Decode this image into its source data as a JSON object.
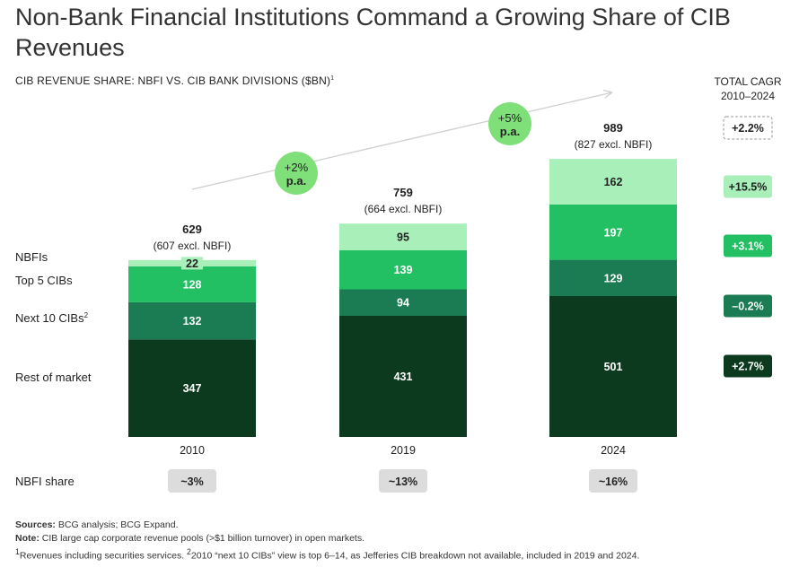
{
  "title": "Non-Bank Financial Institutions Command a Growing Share of CIB Revenues",
  "subtitle": "CIB REVENUE SHARE: NBFI VS. CIB BANK DIVISIONS ($BN)",
  "subtitle_sup": "1",
  "cagr_header": {
    "line1": "TOTAL CAGR",
    "line2": "2010–2024"
  },
  "chart_data": {
    "type": "bar",
    "stacked": true,
    "categories": [
      "2010",
      "2019",
      "2024"
    ],
    "series": [
      {
        "name": "Rest of market",
        "values": [
          347,
          431,
          501
        ],
        "color": "#0c3a1f",
        "cagr": "+2.7%"
      },
      {
        "name": "Next 10 CIBs",
        "name_sup": "2",
        "values": [
          132,
          94,
          129
        ],
        "color": "#1b7b52",
        "cagr": "–0.2%"
      },
      {
        "name": "Top 5 CIBs",
        "values": [
          128,
          139,
          197
        ],
        "color": "#22bf63",
        "cagr": "+3.1%"
      },
      {
        "name": "NBFIs",
        "values": [
          22,
          95,
          162
        ],
        "color": "#a9efb9",
        "cagr": "+15.5%"
      }
    ],
    "totals": [
      {
        "total": "629",
        "excl": "(607 excl. NBFI)"
      },
      {
        "total": "759",
        "excl": "(664 excl. NBFI)"
      },
      {
        "total": "989",
        "excl": "(827 excl. NBFI)"
      }
    ],
    "total_cagr": "+2.2%",
    "growth_badges": [
      {
        "line1": "+2%",
        "line2": "p.a."
      },
      {
        "line1": "+5%",
        "line2": "p.a."
      }
    ],
    "nbfi_share": {
      "label": "NBFI share",
      "values": [
        "~3%",
        "~13%",
        "~16%"
      ]
    },
    "colors": {
      "badge_green": "#7fe07a",
      "share_pill": "#dcdcdc",
      "arrow": "#cfcfcf"
    }
  },
  "footer": {
    "sources_label": "Sources:",
    "sources_text": " BCG analysis; BCG Expand.",
    "note_label": "Note:",
    "note_text": " CIB large cap corporate revenue pools (>$1 billion turnover) in open markets.",
    "footnote_sup1": "1",
    "footnote_1": "Revenues including securities services. ",
    "footnote_sup2": "2",
    "footnote_2": "2010 “next 10 CIBs” view is top 6–14, as Jefferies CIB breakdown not available, included in 2019 and 2024."
  }
}
